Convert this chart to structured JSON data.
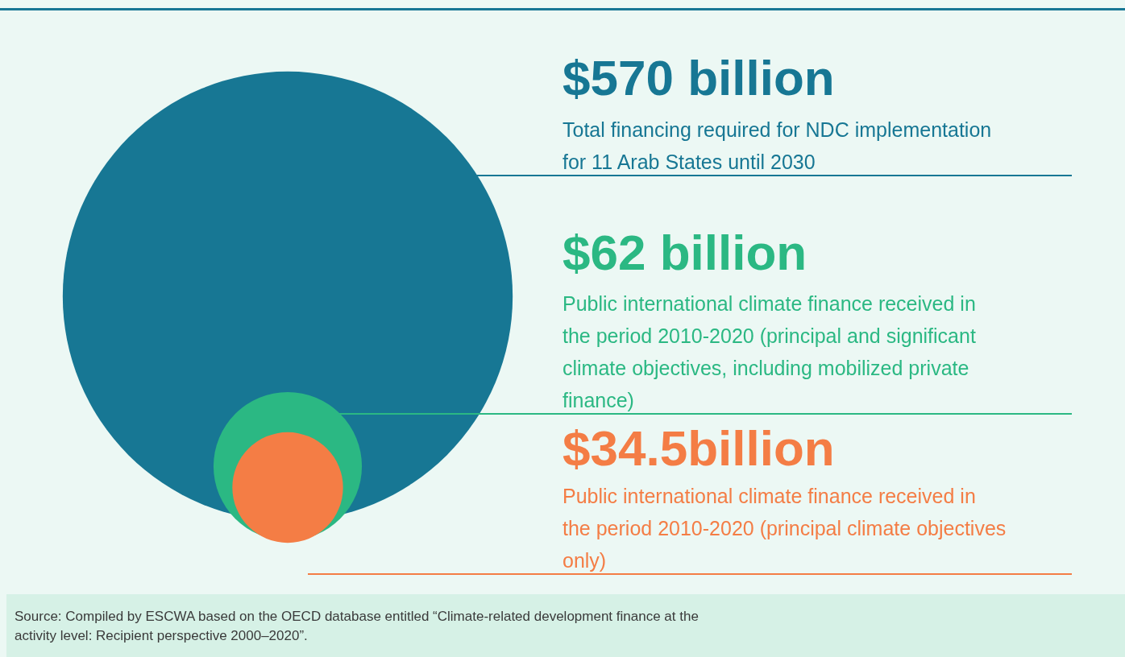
{
  "chart_data": {
    "type": "other",
    "categories": [
      "Total financing required for NDC implementation for 11 Arab States until 2030",
      "Public international climate finance received in the period 2010-2020 (principal and significant climate objectives, including mobilized private finance)",
      "Public international climate finance received in the period 2010-2020 (principal climate objectives only)"
    ],
    "values": [
      570,
      62,
      34.5
    ],
    "value_labels": [
      "$570 billion",
      "$62 billion",
      "$34.5billion"
    ],
    "colors": [
      "#177794",
      "#2bb883",
      "#f47d45"
    ],
    "annotations": [
      "Source: Compiled by ESCWA based on the OECD database entitled “Climate-related development finance at the activity level: Recipient perspective 2000–2020”."
    ]
  }
}
